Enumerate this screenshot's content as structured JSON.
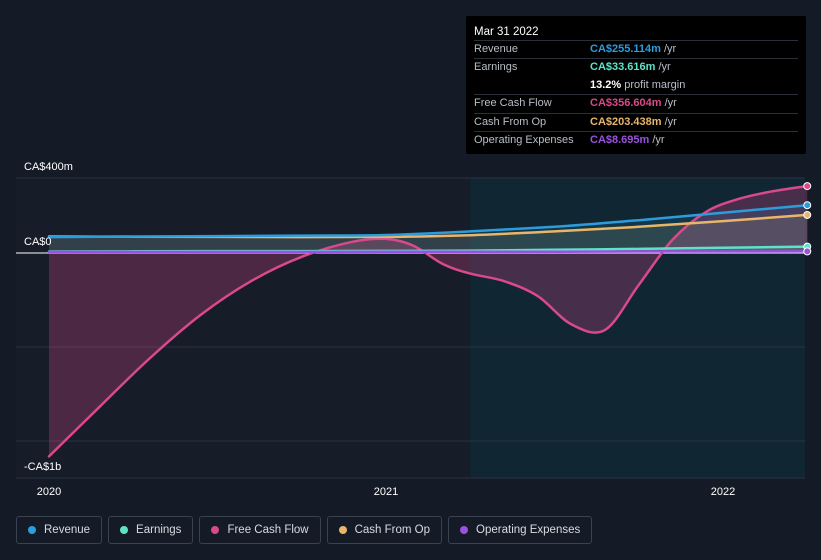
{
  "tooltip": {
    "date": "Mar 31 2022",
    "rows": [
      {
        "label": "Revenue",
        "value": "CA$255.114m",
        "unit": "/yr",
        "color": "#2d9cdb"
      },
      {
        "label": "Earnings",
        "value": "CA$33.616m",
        "unit": "/yr",
        "color": "#5ee3c9"
      },
      {
        "label": "",
        "value": "13.2%",
        "unit": "profit margin",
        "color": "#ffffff"
      },
      {
        "label": "Free Cash Flow",
        "value": "CA$356.604m",
        "unit": "/yr",
        "color": "#d9498c"
      },
      {
        "label": "Cash From Op",
        "value": "CA$203.438m",
        "unit": "/yr",
        "color": "#e8b56b"
      },
      {
        "label": "Operating Expenses",
        "value": "CA$8.695m",
        "unit": "/yr",
        "color": "#9b51e0"
      }
    ]
  },
  "legend": [
    {
      "label": "Revenue",
      "color": "#2d9cdb"
    },
    {
      "label": "Earnings",
      "color": "#5ee3c9"
    },
    {
      "label": "Free Cash Flow",
      "color": "#d9498c"
    },
    {
      "label": "Cash From Op",
      "color": "#e8b56b"
    },
    {
      "label": "Operating Expenses",
      "color": "#9b51e0"
    }
  ],
  "chart_data": {
    "type": "line",
    "y_tick_labels": [
      "CA$400m",
      "CA$0",
      "-CA$1b"
    ],
    "x_tick_labels": [
      "2020",
      "2021",
      "2022"
    ],
    "ylim": [
      -1200,
      400
    ],
    "xlim": [
      2020,
      2022.25
    ],
    "highlight_start": 2021.25,
    "grid": true,
    "series": [
      {
        "name": "Revenue",
        "color": "#2d9cdb",
        "x": [
          2020,
          2020.25,
          2020.5,
          2020.75,
          2021,
          2021.25,
          2021.5,
          2021.75,
          2022,
          2022.25
        ],
        "values": [
          85,
          88,
          90,
          93,
          96,
          115,
          140,
          175,
          215,
          255
        ]
      },
      {
        "name": "Earnings",
        "color": "#5ee3c9",
        "x": [
          2020,
          2020.25,
          2020.5,
          2020.75,
          2021,
          2021.25,
          2021.5,
          2021.75,
          2022,
          2022.25
        ],
        "values": [
          8,
          9,
          10,
          10,
          11,
          13,
          17,
          22,
          28,
          34
        ]
      },
      {
        "name": "Free Cash Flow",
        "color": "#d9498c",
        "x": [
          2020,
          2020.15,
          2020.3,
          2020.45,
          2020.6,
          2020.75,
          2020.9,
          2021,
          2021.08,
          2021.17,
          2021.25,
          2021.35,
          2021.45,
          2021.55,
          2021.65,
          2021.75,
          2021.85,
          2021.95,
          2022.05,
          2022.15,
          2022.25
        ],
        "values": [
          -1085,
          -820,
          -560,
          -330,
          -150,
          -20,
          60,
          75,
          40,
          -60,
          -110,
          -150,
          -230,
          -380,
          -410,
          -170,
          70,
          220,
          290,
          330,
          357
        ]
      },
      {
        "name": "Cash From Op",
        "color": "#e8b56b",
        "x": [
          2020,
          2020.25,
          2020.5,
          2020.75,
          2021,
          2021.25,
          2021.5,
          2021.75,
          2022,
          2022.25
        ],
        "values": [
          88,
          87,
          86,
          85,
          86,
          95,
          115,
          140,
          170,
          203
        ]
      },
      {
        "name": "Operating Expenses",
        "color": "#9b51e0",
        "x": [
          2020,
          2020.25,
          2020.5,
          2020.75,
          2021,
          2021.25,
          2021.5,
          2021.75,
          2022,
          2022.25
        ],
        "values": [
          6,
          6,
          6,
          6,
          7,
          7,
          7,
          8,
          8,
          8.7
        ]
      }
    ]
  }
}
